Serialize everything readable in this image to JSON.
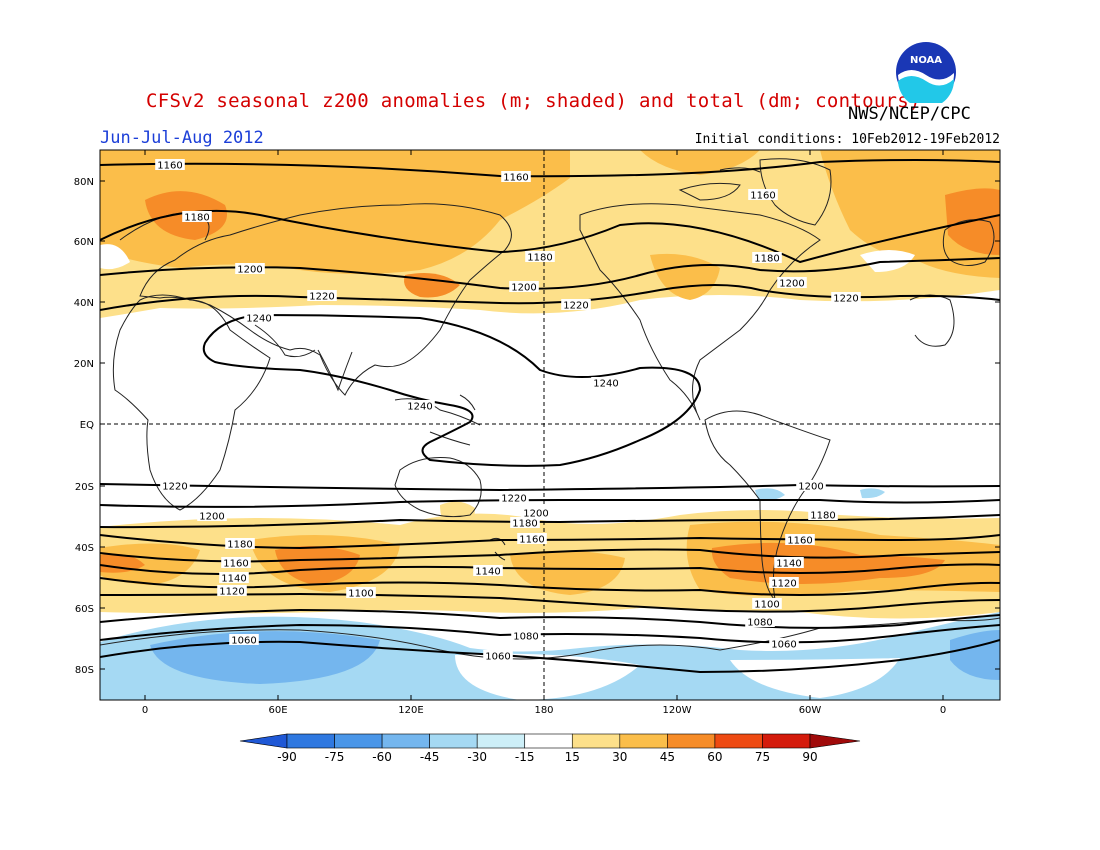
{
  "header": {
    "title": "CFSv2 seasonal z200 anomalies (m; shaded) and total (dm; contours)",
    "agency": "NWS/NCEP/CPC",
    "period": "Jun-Jul-Aug 2012",
    "initial_conditions_label": "Initial conditions:",
    "initial_conditions_value": "10Feb2012-19Feb2012",
    "logo_text": "NOAA"
  },
  "map": {
    "projection": "cylindrical equidistant",
    "lat_labels": [
      "80N",
      "60N",
      "40N",
      "20N",
      "EQ",
      "20S",
      "40S",
      "60S",
      "80S"
    ],
    "lon_labels": [
      "0",
      "60E",
      "120E",
      "180",
      "120W",
      "60W",
      "0"
    ],
    "reference_lines": [
      "equator (dashed)",
      "dateline (dashed)"
    ],
    "contour_levels_dm": [
      1060,
      1080,
      1100,
      1120,
      1140,
      1160,
      1180,
      1200,
      1220,
      1240
    ],
    "contour_labels": [
      "1160",
      "1160",
      "1160",
      "1180",
      "1180",
      "1180",
      "1200",
      "1200",
      "1200",
      "1220",
      "1220",
      "1220",
      "1240",
      "1240",
      "1240",
      "1220",
      "1220",
      "1200",
      "1200",
      "1200",
      "1180",
      "1180",
      "1180",
      "1160",
      "1160",
      "1160",
      "1140",
      "1140",
      "1140",
      "1120",
      "1120",
      "1100",
      "1100",
      "1080",
      "1080",
      "1060",
      "1060",
      "1060"
    ]
  },
  "colorbar": {
    "unit": "m",
    "ticks": [
      "-90",
      "-75",
      "-60",
      "-45",
      "-30",
      "-15",
      "15",
      "30",
      "45",
      "60",
      "75",
      "90"
    ],
    "colors": [
      "#1f58d6",
      "#2f78e0",
      "#4a96e8",
      "#74b6ee",
      "#a5d9f3",
      "#cdeff8",
      "#ffffff",
      "#fde08a",
      "#fbbe4a",
      "#f68c28",
      "#ee4a12",
      "#d41b0c",
      "#a00a0a"
    ]
  }
}
